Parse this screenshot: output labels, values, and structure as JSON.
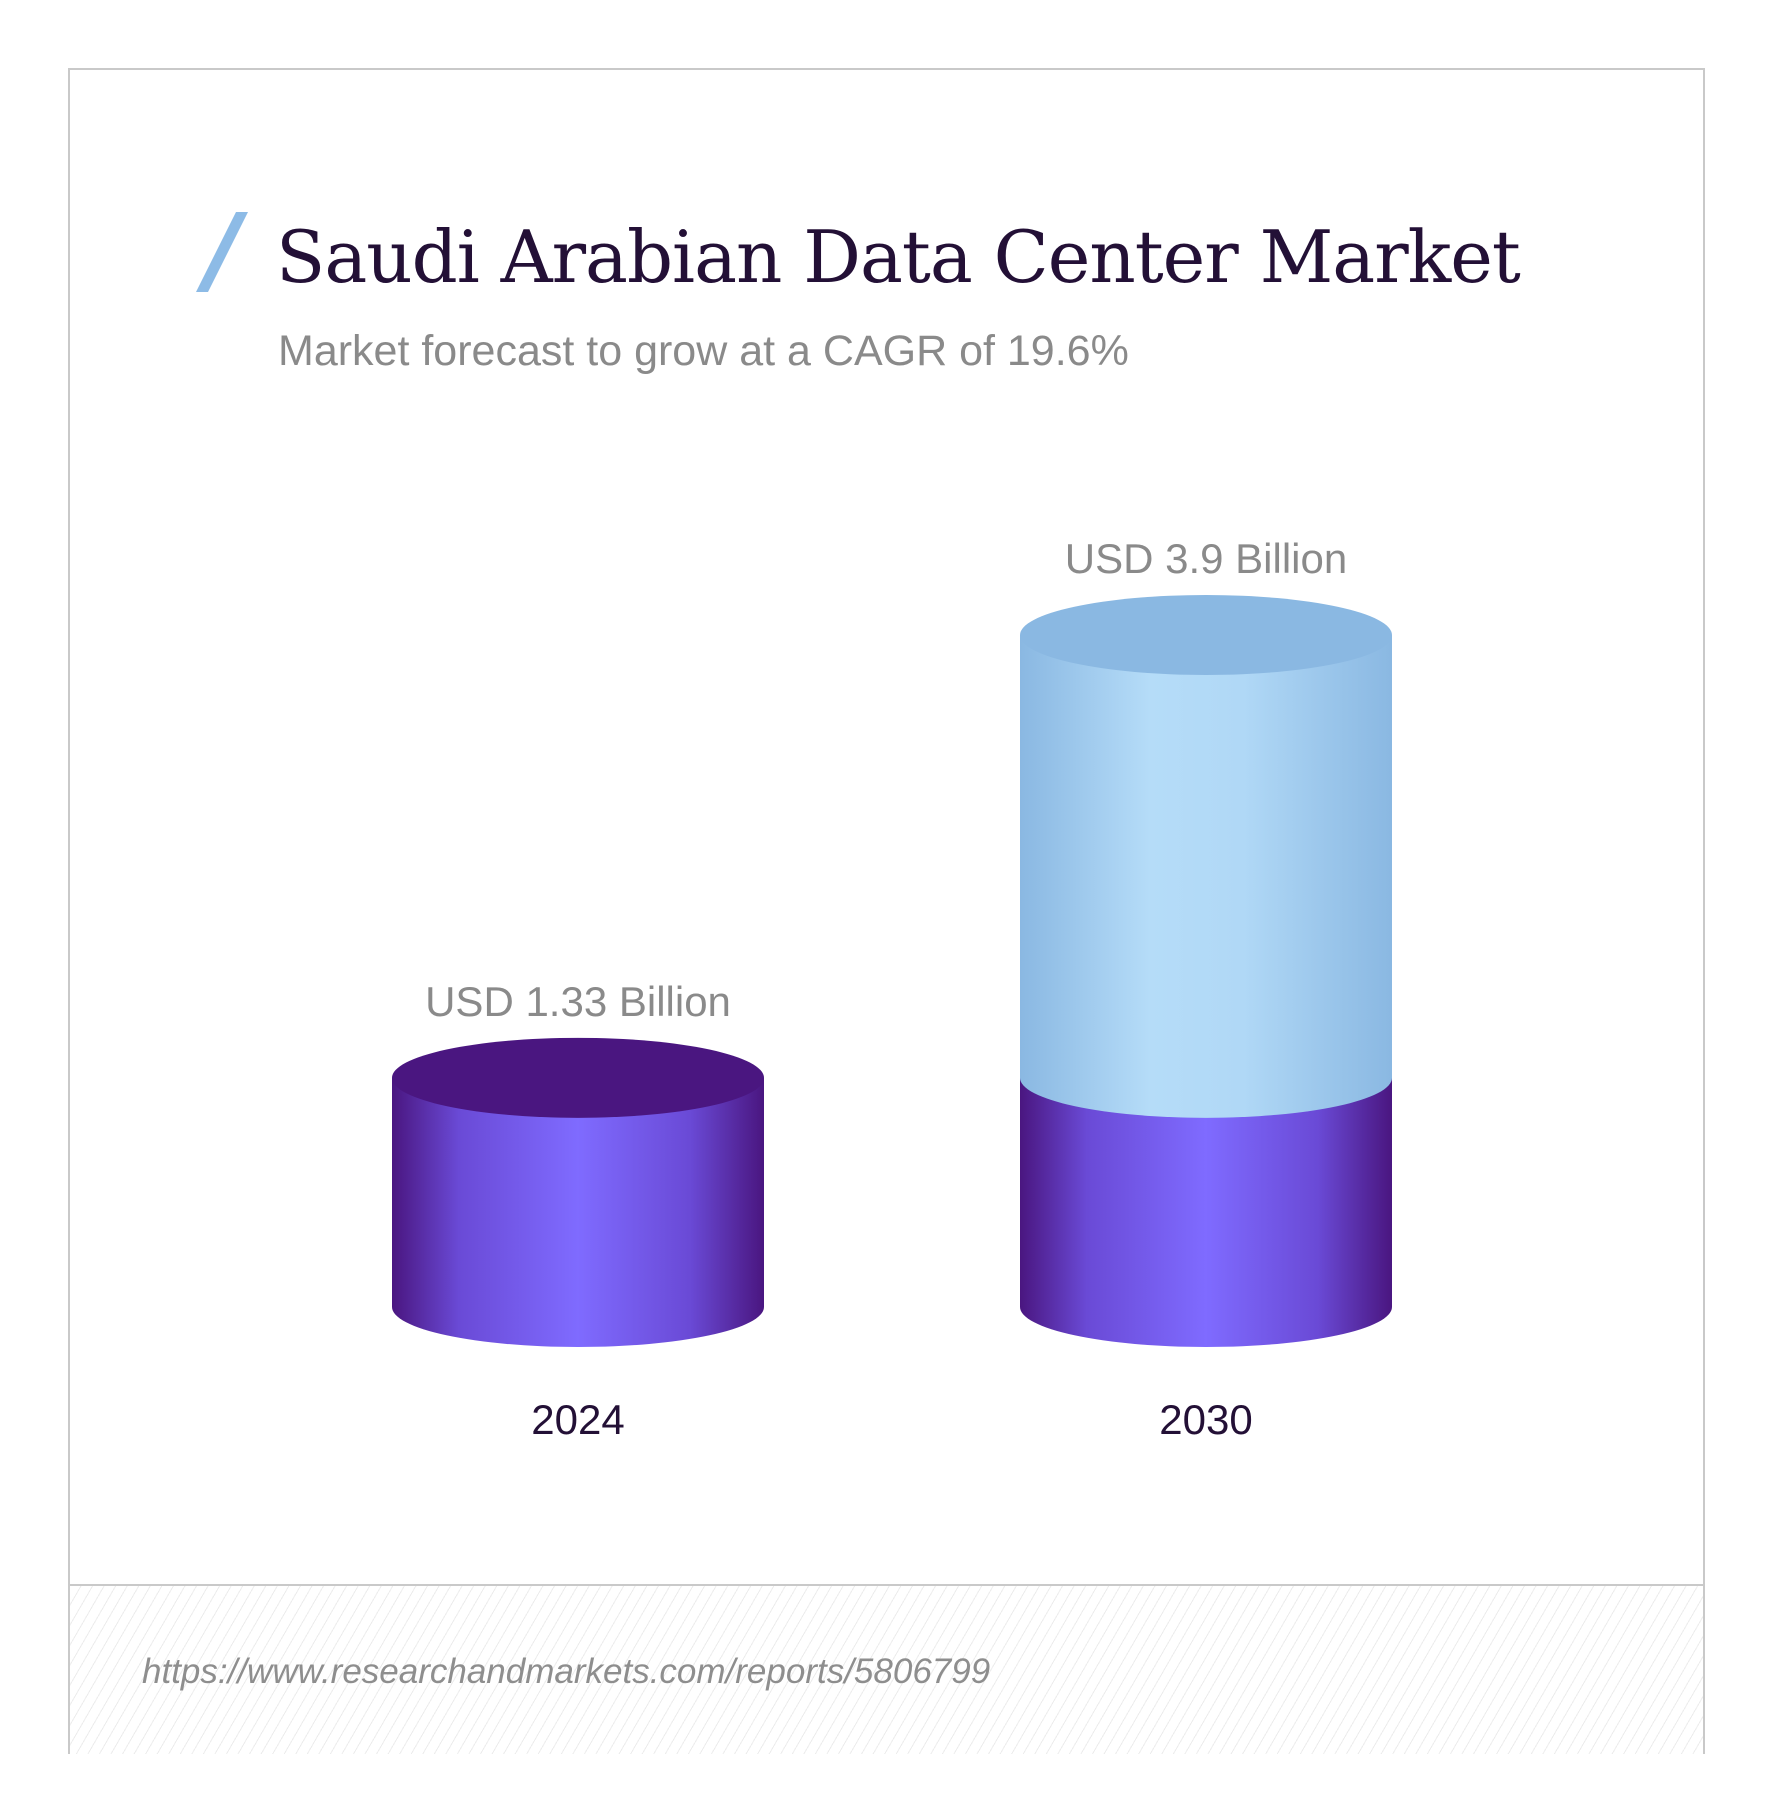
{
  "title": "Saudi Arabian Data Center Market",
  "subtitle": "Market forecast to grow at a CAGR of 19.6%",
  "source_url": "https://www.researchandmarkets.com/reports/5806799",
  "colors": {
    "title": "#231036",
    "accent_slash": "#8dbbe6",
    "base_cylinder_light": "#7f6bff",
    "base_cylinder_dark": "#4a1680",
    "growth_cylinder_light": "#b5dcf8",
    "growth_cylinder_dark": "#8ab8e2",
    "label_gray": "#8a8a8a"
  },
  "chart_data": {
    "type": "bar",
    "style": "3d-cylinder",
    "categories": [
      "2024",
      "2030"
    ],
    "values": [
      1.33,
      3.9
    ],
    "value_labels": [
      "USD 1.33 Billion",
      "USD 3.9 Billion"
    ],
    "unit": "USD Billion",
    "title": "Saudi Arabian Data Center Market",
    "subtitle": "Market forecast to grow at a CAGR of 19.6%",
    "cagr": "19.6%",
    "xlabel": "",
    "ylabel": "",
    "grid": false
  }
}
